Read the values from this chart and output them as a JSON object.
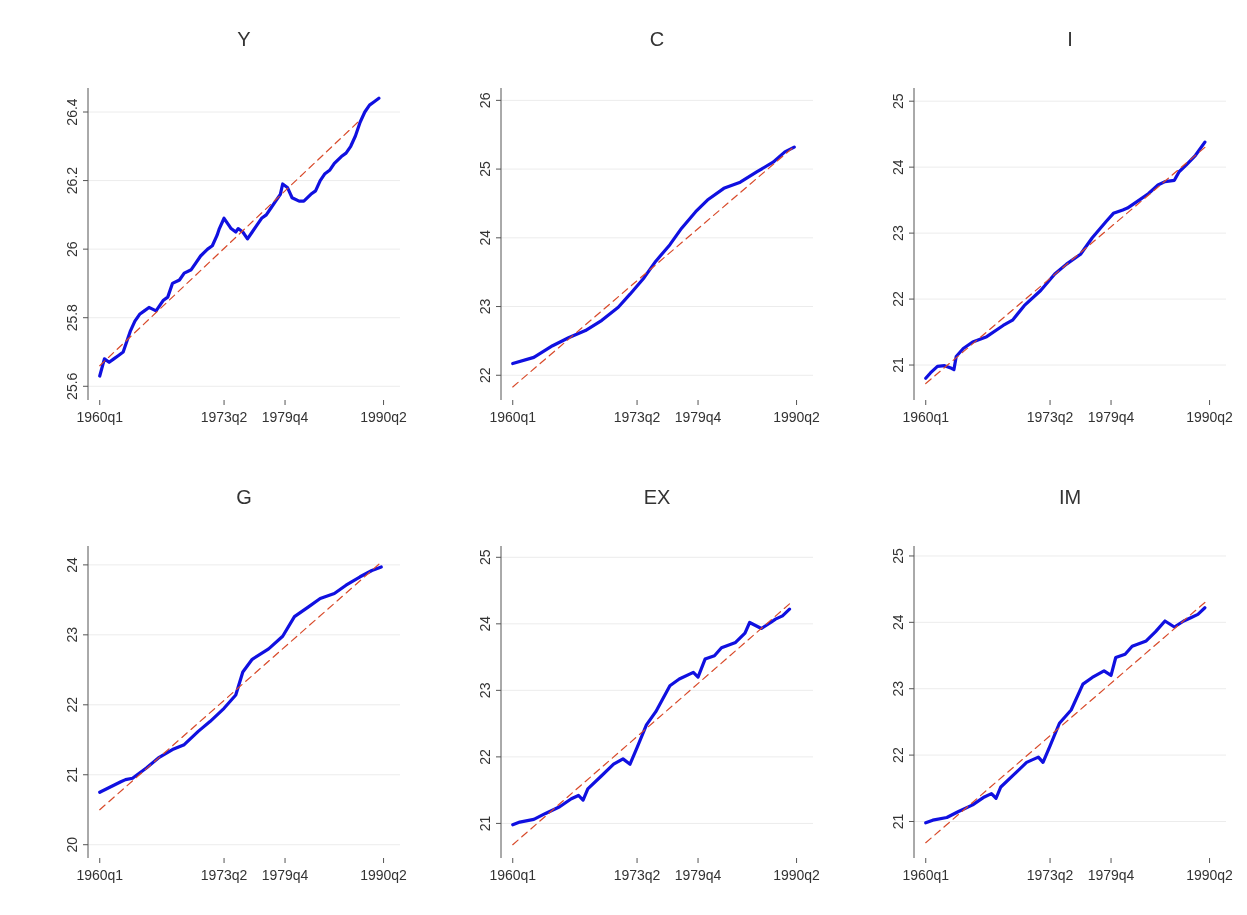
{
  "chart_data": [
    {
      "type": "line",
      "title": "Y",
      "xlim": [
        "1958-10",
        "1992-01"
      ],
      "xticks": [
        {
          "value": "1960-01",
          "label": "1960q1"
        },
        {
          "value": "1973-04",
          "label": "1973q2"
        },
        {
          "value": "1979-10",
          "label": "1979q4"
        },
        {
          "value": "1990-04",
          "label": "1990q2"
        }
      ],
      "ylim": [
        25.56,
        26.47
      ],
      "yticks": [
        25.6,
        25.8,
        26,
        26.2,
        26.4
      ],
      "grid": "y",
      "marker": "none",
      "line_style": "solid",
      "series": [
        {
          "color": "#1010e0",
          "x": [
            "1960-01",
            "1960-07",
            "1961-01",
            "1961-07",
            "1962-01",
            "1962-07",
            "1963-04",
            "1963-10",
            "1964-04",
            "1964-10",
            "1965-04",
            "1966-01",
            "1966-10",
            "1967-04",
            "1967-10",
            "1968-07",
            "1969-01",
            "1969-10",
            "1970-04",
            "1970-10",
            "1971-07",
            "1972-01",
            "1972-07",
            "1972-10",
            "1973-04",
            "1973-10",
            "1974-01",
            "1974-07",
            "1974-10",
            "1975-04",
            "1975-10",
            "1976-04",
            "1976-10",
            "1977-04",
            "1977-10",
            "1978-04",
            "1978-10",
            "1979-04",
            "1979-07",
            "1980-01",
            "1980-07",
            "1981-04",
            "1981-10",
            "1982-07",
            "1983-01",
            "1983-07",
            "1984-01",
            "1984-07",
            "1985-01",
            "1985-10",
            "1986-04",
            "1986-10",
            "1987-04",
            "1987-10",
            "1988-04",
            "1988-10",
            "1989-04",
            "1989-10"
          ],
          "values": [
            25.63,
            25.68,
            25.67,
            25.68,
            25.69,
            25.7,
            25.76,
            25.79,
            25.81,
            25.82,
            25.83,
            25.82,
            25.85,
            25.86,
            25.9,
            25.91,
            25.93,
            25.94,
            25.96,
            25.98,
            26.0,
            26.01,
            26.04,
            26.06,
            26.09,
            26.07,
            26.06,
            26.05,
            26.06,
            26.05,
            26.03,
            26.05,
            26.07,
            26.09,
            26.1,
            26.12,
            26.14,
            26.16,
            26.19,
            26.18,
            26.15,
            26.14,
            26.14,
            26.16,
            26.17,
            26.2,
            26.22,
            26.23,
            26.25,
            26.27,
            26.28,
            26.3,
            26.33,
            26.37,
            26.4,
            26.42,
            26.43,
            26.44
          ]
        },
        {
          "type": "line",
          "color": "#d84a2a",
          "line_style": "dashed",
          "x": [
            "1960-01",
            "1987-07"
          ],
          "values": [
            25.66,
            26.37
          ]
        }
      ]
    },
    {
      "type": "line",
      "title": "C",
      "xlim": [
        "1958-10",
        "1992-01"
      ],
      "xticks": [
        {
          "value": "1960-01",
          "label": "1960q1"
        },
        {
          "value": "1973-04",
          "label": "1973q2"
        },
        {
          "value": "1979-10",
          "label": "1979q4"
        },
        {
          "value": "1990-04",
          "label": "1990q2"
        }
      ],
      "ylim": [
        21.64,
        26.18
      ],
      "yticks": [
        22,
        23,
        24,
        25,
        26
      ],
      "grid": "y",
      "marker": "none",
      "line_style": "solid",
      "series": [
        {
          "color": "#1010e0",
          "x": [
            "1960-01",
            "1962-04",
            "1964-04",
            "1966-01",
            "1967-10",
            "1969-07",
            "1971-04",
            "1972-07",
            "1974-01",
            "1975-04",
            "1976-10",
            "1978-01",
            "1979-07",
            "1980-10",
            "1982-07",
            "1984-04",
            "1986-01",
            "1987-10",
            "1989-01",
            "1990-01"
          ],
          "values": [
            22.17,
            22.26,
            22.43,
            22.55,
            22.65,
            22.8,
            22.99,
            23.18,
            23.42,
            23.66,
            23.9,
            24.14,
            24.38,
            24.55,
            24.72,
            24.81,
            24.96,
            25.1,
            25.25,
            25.32
          ]
        },
        {
          "type": "line",
          "color": "#d84a2a",
          "line_style": "dashed",
          "x": [
            "1960-01",
            "1989-10"
          ],
          "values": [
            21.83,
            25.3
          ]
        }
      ]
    },
    {
      "type": "line",
      "title": "I",
      "xlim": [
        "1958-10",
        "1992-01"
      ],
      "xticks": [
        {
          "value": "1960-01",
          "label": "1960q1"
        },
        {
          "value": "1973-04",
          "label": "1973q2"
        },
        {
          "value": "1979-10",
          "label": "1979q4"
        },
        {
          "value": "1990-04",
          "label": "1990q2"
        }
      ],
      "ylim": [
        20.47,
        25.2
      ],
      "yticks": [
        21,
        22,
        23,
        24,
        25
      ],
      "grid": "y",
      "marker": "none",
      "line_style": "solid",
      "series": [
        {
          "color": "#1010e0",
          "x": [
            "1960-01",
            "1960-07",
            "1961-04",
            "1962-01",
            "1962-10",
            "1963-01",
            "1963-04",
            "1964-01",
            "1965-01",
            "1966-07",
            "1968-04",
            "1969-04",
            "1970-07",
            "1972-04",
            "1973-10",
            "1975-01",
            "1976-07",
            "1977-10",
            "1979-04",
            "1980-01",
            "1981-01",
            "1981-07",
            "1982-10",
            "1983-10",
            "1984-10",
            "1985-07",
            "1986-07",
            "1987-01",
            "1987-10",
            "1988-10",
            "1989-10"
          ],
          "values": [
            20.8,
            20.88,
            20.98,
            20.99,
            20.95,
            20.93,
            21.13,
            21.25,
            21.35,
            21.43,
            21.6,
            21.68,
            21.9,
            22.13,
            22.38,
            22.53,
            22.68,
            22.93,
            23.18,
            23.3,
            23.35,
            23.38,
            23.5,
            23.6,
            23.73,
            23.78,
            23.8,
            23.93,
            24.03,
            24.18,
            24.38
          ]
        },
        {
          "type": "line",
          "color": "#d84a2a",
          "line_style": "dashed",
          "x": [
            "1960-01",
            "1989-10"
          ],
          "values": [
            20.72,
            24.3
          ]
        }
      ]
    },
    {
      "type": "line",
      "title": "G",
      "xlim": [
        "1958-10",
        "1992-01"
      ],
      "xticks": [
        {
          "value": "1960-01",
          "label": "1960q1"
        },
        {
          "value": "1973-04",
          "label": "1973q2"
        },
        {
          "value": "1979-10",
          "label": "1979q4"
        },
        {
          "value": "1990-04",
          "label": "1990q2"
        }
      ],
      "ylim": [
        19.81,
        24.27
      ],
      "yticks": [
        20,
        21,
        22,
        23,
        24
      ],
      "grid": "y",
      "marker": "none",
      "line_style": "solid",
      "series": [
        {
          "color": "#1010e0",
          "x": [
            "1960-01",
            "1960-10",
            "1961-07",
            "1962-04",
            "1962-10",
            "1963-07",
            "1965-01",
            "1966-04",
            "1967-10",
            "1969-01",
            "1970-07",
            "1971-10",
            "1973-04",
            "1974-07",
            "1975-04",
            "1976-04",
            "1978-01",
            "1979-07",
            "1980-10",
            "1982-04",
            "1983-07",
            "1985-01",
            "1986-04",
            "1987-10",
            "1989-01",
            "1990-01"
          ],
          "values": [
            20.75,
            20.8,
            20.85,
            20.9,
            20.93,
            20.95,
            21.1,
            21.24,
            21.36,
            21.43,
            21.62,
            21.76,
            21.95,
            22.14,
            22.47,
            22.65,
            22.8,
            22.98,
            23.26,
            23.4,
            23.52,
            23.59,
            23.71,
            23.83,
            23.92,
            23.97
          ]
        },
        {
          "type": "line",
          "color": "#d84a2a",
          "line_style": "dashed",
          "x": [
            "1960-01",
            "1989-10"
          ],
          "values": [
            20.5,
            24.01
          ]
        }
      ]
    },
    {
      "type": "line",
      "title": "EX",
      "xlim": [
        "1958-10",
        "1992-01"
      ],
      "xticks": [
        {
          "value": "1960-01",
          "label": "1960q1"
        },
        {
          "value": "1973-04",
          "label": "1973q2"
        },
        {
          "value": "1979-10",
          "label": "1979q4"
        },
        {
          "value": "1990-04",
          "label": "1990q2"
        }
      ],
      "ylim": [
        20.48,
        25.17
      ],
      "yticks": [
        21,
        22,
        23,
        24,
        25
      ],
      "grid": "y",
      "marker": "none",
      "line_style": "solid",
      "series": [
        {
          "color": "#1010e0",
          "x": [
            "1960-01",
            "1960-10",
            "1962-04",
            "1963-07",
            "1965-01",
            "1966-04",
            "1967-01",
            "1967-07",
            "1968-01",
            "1969-07",
            "1970-10",
            "1971-10",
            "1972-07",
            "1973-04",
            "1974-04",
            "1975-04",
            "1976-10",
            "1977-10",
            "1979-04",
            "1979-10",
            "1980-07",
            "1981-07",
            "1982-04",
            "1983-10",
            "1984-10",
            "1985-04",
            "1986-07",
            "1987-07",
            "1988-01",
            "1988-10",
            "1989-07"
          ],
          "values": [
            20.98,
            21.02,
            21.06,
            21.15,
            21.25,
            21.37,
            21.42,
            21.35,
            21.52,
            21.72,
            21.89,
            21.97,
            21.89,
            22.14,
            22.48,
            22.68,
            23.07,
            23.17,
            23.27,
            23.2,
            23.47,
            23.52,
            23.64,
            23.72,
            23.86,
            24.02,
            23.93,
            24.02,
            24.07,
            24.12,
            24.22
          ]
        },
        {
          "type": "line",
          "color": "#d84a2a",
          "line_style": "dashed",
          "x": [
            "1960-01",
            "1989-07"
          ],
          "values": [
            20.68,
            24.3
          ]
        }
      ]
    },
    {
      "type": "line",
      "title": "IM",
      "xlim": [
        "1958-10",
        "1992-01"
      ],
      "xticks": [
        {
          "value": "1960-01",
          "label": "1960q1"
        },
        {
          "value": "1973-04",
          "label": "1973q2"
        },
        {
          "value": "1979-10",
          "label": "1979q4"
        },
        {
          "value": "1990-04",
          "label": "1990q2"
        }
      ],
      "ylim": [
        20.45,
        25.15
      ],
      "yticks": [
        21,
        22,
        23,
        24,
        25
      ],
      "grid": "y",
      "marker": "none",
      "line_style": "solid",
      "series": [
        {
          "color": "#1010e0",
          "x": [
            "1960-01",
            "1960-10",
            "1962-04",
            "1963-07",
            "1965-01",
            "1966-04",
            "1967-01",
            "1967-07",
            "1968-01",
            "1969-07",
            "1970-10",
            "1972-01",
            "1972-07",
            "1973-04",
            "1974-04",
            "1975-07",
            "1976-10",
            "1977-10",
            "1979-01",
            "1979-10",
            "1980-04",
            "1981-04",
            "1982-01",
            "1983-07",
            "1984-07",
            "1985-07",
            "1986-07",
            "1987-07",
            "1988-04",
            "1989-01",
            "1989-10"
          ],
          "values": [
            20.98,
            21.02,
            21.06,
            21.15,
            21.25,
            21.37,
            21.42,
            21.35,
            21.52,
            21.72,
            21.89,
            21.97,
            21.89,
            22.14,
            22.48,
            22.68,
            23.07,
            23.17,
            23.27,
            23.2,
            23.47,
            23.52,
            23.64,
            23.72,
            23.86,
            24.02,
            23.93,
            24.02,
            24.07,
            24.12,
            24.22
          ]
        },
        {
          "type": "line",
          "color": "#d84a2a",
          "line_style": "dashed",
          "x": [
            "1960-01",
            "1989-10"
          ],
          "values": [
            20.68,
            24.3
          ]
        }
      ]
    }
  ]
}
